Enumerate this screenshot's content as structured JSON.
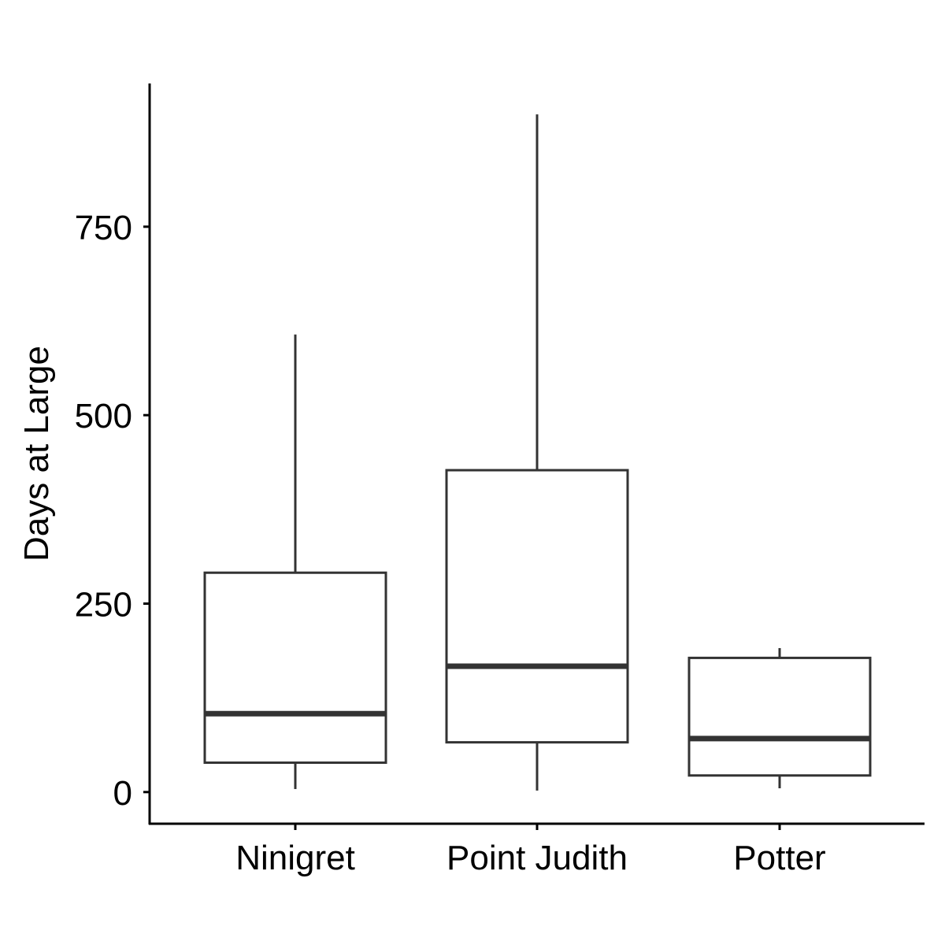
{
  "chart_data": {
    "type": "boxplot",
    "title": "",
    "xlabel": "",
    "ylabel": "Days at Large",
    "ylim": [
      -42,
      940
    ],
    "yticks": [
      0,
      250,
      500,
      750
    ],
    "grid": false,
    "categories": [
      "Ninigret",
      "Point Judith",
      "Potter"
    ],
    "boxes": [
      {
        "category": "Ninigret",
        "min": 4,
        "q1": 39,
        "median": 104,
        "q3": 291,
        "max": 607
      },
      {
        "category": "Point Judith",
        "min": 2,
        "q1": 66,
        "median": 167,
        "q3": 427,
        "max": 899
      },
      {
        "category": "Potter",
        "min": 5,
        "q1": 22,
        "median": 71,
        "q3": 178,
        "max": 191
      }
    ],
    "colors": {
      "box_stroke": "#333333",
      "box_fill": "#ffffff",
      "axis": "#000000",
      "text": "#000000"
    }
  }
}
